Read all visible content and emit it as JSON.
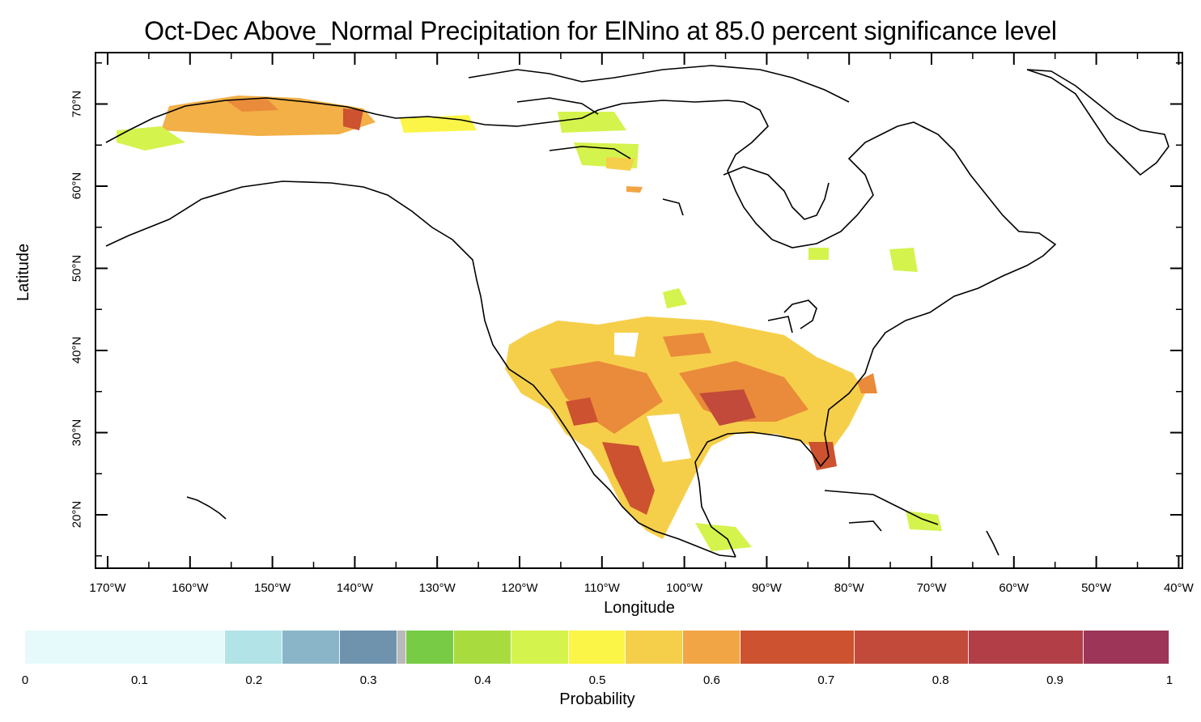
{
  "title": "Oct-Dec Above_Normal Precipitation for ElNino at 85.0 percent significance level",
  "x_axis": {
    "title": "Longitude",
    "ticks": [
      "170°W",
      "160°W",
      "150°W",
      "140°W",
      "130°W",
      "120°W",
      "110°W",
      "100°W",
      "90°W",
      "80°W",
      "70°W",
      "60°W",
      "50°W",
      "40°W"
    ]
  },
  "y_axis": {
    "title": "Latitude",
    "ticks": [
      "20°N",
      "30°N",
      "40°N",
      "50°N",
      "60°N",
      "70°N"
    ]
  },
  "colorbar": {
    "title": "Probability",
    "tick_labels": [
      "0",
      "0.1",
      "0.2",
      "0.3",
      "0.4",
      "0.5",
      "0.6",
      "0.7",
      "0.8",
      "0.9",
      "1"
    ],
    "segments": [
      {
        "from": 0.0,
        "to": 0.175,
        "color": "#e6f9fb"
      },
      {
        "from": 0.175,
        "to": 0.225,
        "color": "#b2e3e6"
      },
      {
        "from": 0.225,
        "to": 0.275,
        "color": "#8ab5c8"
      },
      {
        "from": 0.275,
        "to": 0.325,
        "color": "#6f93ad"
      },
      {
        "from": 0.325,
        "to": 0.333,
        "color": "#b9b9b9"
      },
      {
        "from": 0.333,
        "to": 0.375,
        "color": "#78cc45"
      },
      {
        "from": 0.375,
        "to": 0.425,
        "color": "#a8dc3e"
      },
      {
        "from": 0.425,
        "to": 0.475,
        "color": "#d5f34d"
      },
      {
        "from": 0.475,
        "to": 0.525,
        "color": "#fbf547"
      },
      {
        "from": 0.525,
        "to": 0.575,
        "color": "#f6cf4a"
      },
      {
        "from": 0.575,
        "to": 0.625,
        "color": "#f2a544"
      },
      {
        "from": 0.625,
        "to": 0.725,
        "color": "#cc5230"
      },
      {
        "from": 0.725,
        "to": 0.825,
        "color": "#c24a3a"
      },
      {
        "from": 0.825,
        "to": 0.925,
        "color": "#b23f48"
      },
      {
        "from": 0.925,
        "to": 1.0,
        "color": "#9c3558"
      }
    ]
  },
  "map_extent": {
    "lon_min": -172,
    "lon_max": -40,
    "lat_min": 13.5,
    "lat_max": 75
  }
}
